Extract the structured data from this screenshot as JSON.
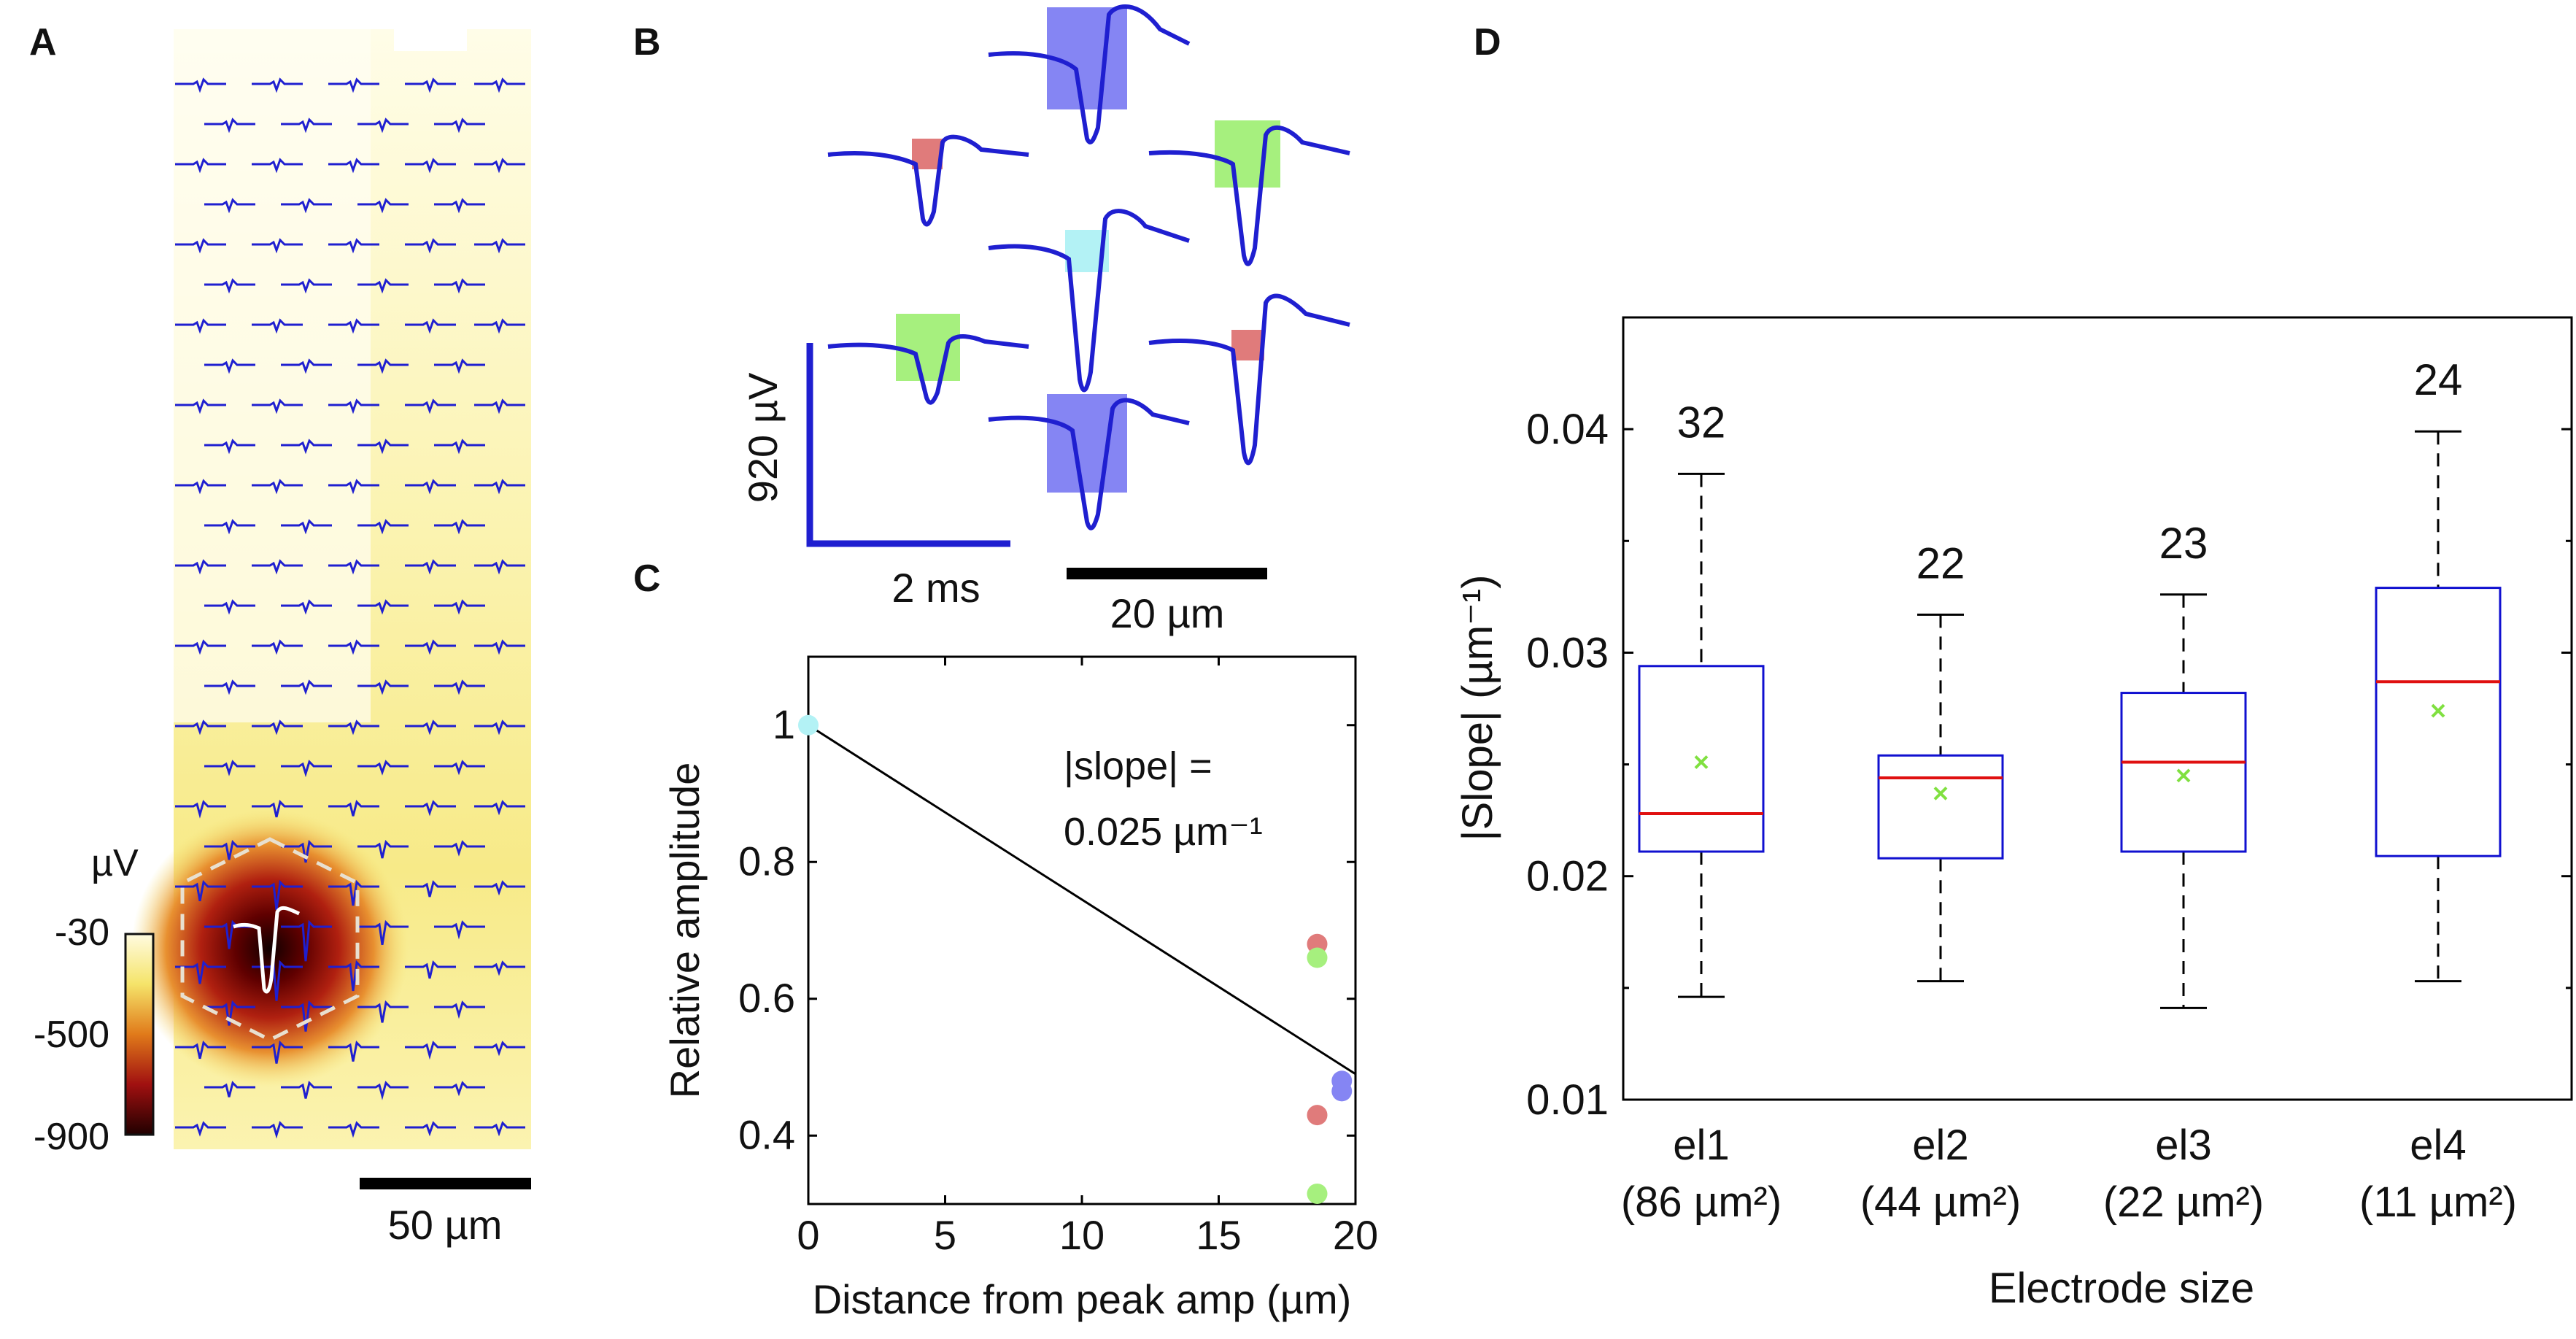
{
  "panel_labels": {
    "a": "A",
    "b": "B",
    "c": "C",
    "d": "D"
  },
  "panel_a": {
    "colorbar": {
      "unit": "µV",
      "ticks": [
        "-30",
        "-500",
        "-900"
      ],
      "colors": [
        "#fffbe0",
        "#f5e46a",
        "#e07a1a",
        "#a01010",
        "#200000"
      ]
    },
    "scale_bar": "50 µm",
    "trace_color": "#1f1fd0",
    "peak_trace_color": "#ffffff"
  },
  "panel_b": {
    "scale_y": "920 µV",
    "scale_x": "2 ms",
    "distance_bar": "20 µm",
    "electrode_colors": {
      "red": "#e07b7b",
      "green": "#a6f07e",
      "cyan": "#b3f2f5",
      "blue": "#8585f3"
    }
  },
  "chart_data": [
    {
      "type": "scatter",
      "panel": "C",
      "xlabel": "Distance from peak amp (µm)",
      "ylabel": "Relative amplitude",
      "xlim": [
        0,
        20
      ],
      "ylim": [
        0.3,
        1.1
      ],
      "xticks": [
        0,
        5,
        10,
        15,
        20
      ],
      "yticks": [
        0.4,
        0.6,
        0.8,
        1.0
      ],
      "xtick_labels": [
        "0",
        "5",
        "10",
        "15",
        "20"
      ],
      "ytick_labels": [
        "0.4",
        "0.6",
        "0.8",
        "1"
      ],
      "points": [
        {
          "x": 0,
          "y": 1.0,
          "color": "#b3f2f5"
        },
        {
          "x": 18.6,
          "y": 0.68,
          "color": "#e07b7b"
        },
        {
          "x": 18.6,
          "y": 0.66,
          "color": "#a6f07e"
        },
        {
          "x": 19.5,
          "y": 0.48,
          "color": "#8585f3"
        },
        {
          "x": 19.5,
          "y": 0.465,
          "color": "#8585f3"
        },
        {
          "x": 18.6,
          "y": 0.43,
          "color": "#e07b7b"
        },
        {
          "x": 18.6,
          "y": 0.315,
          "color": "#a6f07e"
        }
      ],
      "fit_line": {
        "x": [
          0,
          20
        ],
        "y": [
          1.0,
          0.49
        ]
      },
      "annotation": [
        "|slope| =",
        "0.025 µm⁻¹"
      ]
    },
    {
      "type": "box",
      "panel": "D",
      "xlabel": "Electrode size",
      "ylabel": "|Slope| (µm⁻¹)",
      "ylim": [
        0.01,
        0.045
      ],
      "yticks": [
        0.01,
        0.02,
        0.03,
        0.04
      ],
      "ytick_labels": [
        "0.01",
        "0.02",
        "0.03",
        "0.04"
      ],
      "categories": [
        "el1",
        "el2",
        "el3",
        "el4"
      ],
      "sublabels": [
        "(86 µm²)",
        "(44 µm²)",
        "(22 µm²)",
        "(11 µm²)"
      ],
      "counts": [
        "32",
        "22",
        "23",
        "24"
      ],
      "boxes": [
        {
          "whisker_low": 0.0146,
          "q1": 0.0211,
          "median": 0.0228,
          "q3": 0.0294,
          "whisker_high": 0.038,
          "mean": 0.0251
        },
        {
          "whisker_low": 0.0153,
          "q1": 0.0208,
          "median": 0.0244,
          "q3": 0.0254,
          "whisker_high": 0.0317,
          "mean": 0.0237
        },
        {
          "whisker_low": 0.0141,
          "q1": 0.0211,
          "median": 0.0251,
          "q3": 0.0282,
          "whisker_high": 0.0326,
          "mean": 0.0245
        },
        {
          "whisker_low": 0.0153,
          "q1": 0.0209,
          "median": 0.0287,
          "q3": 0.0329,
          "whisker_high": 0.0399,
          "mean": 0.0274
        }
      ],
      "box_color": "#1010d0",
      "median_color": "#e01010",
      "mean_color": "#80e040"
    }
  ]
}
